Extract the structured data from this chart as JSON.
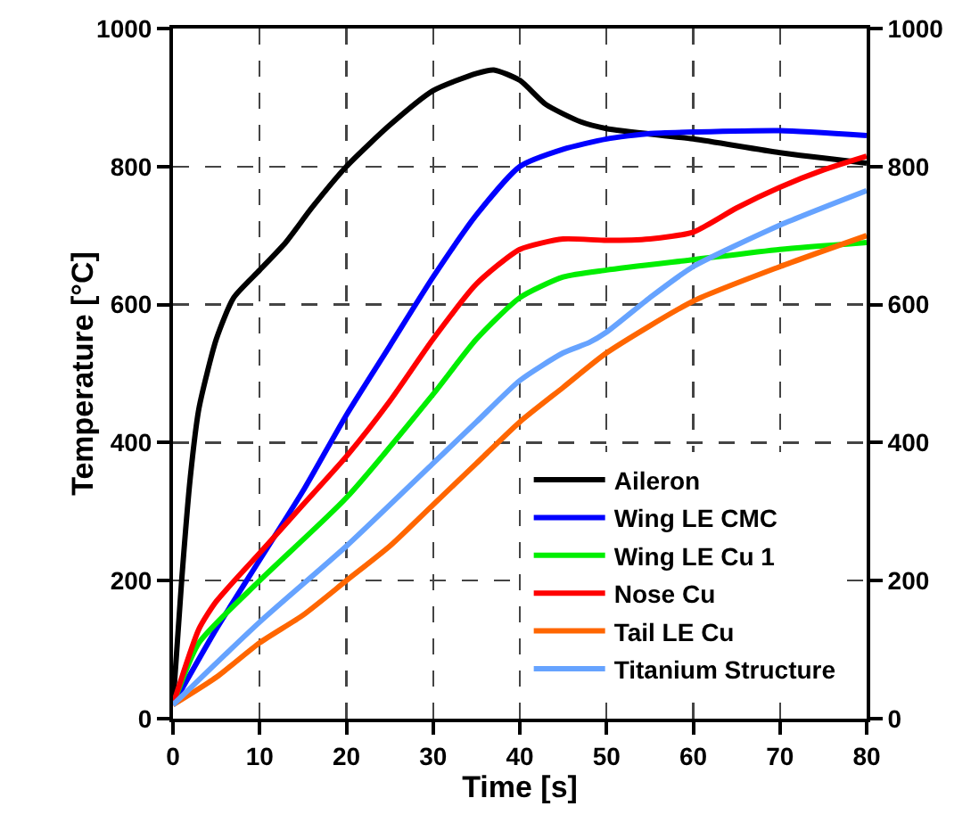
{
  "chart_data": {
    "type": "line",
    "xlabel": "Time [s]",
    "ylabel": "Temperature [°C]",
    "xlim": [
      0,
      80
    ],
    "xticks": [
      0,
      10,
      20,
      30,
      40,
      50,
      60,
      70,
      80
    ],
    "ylim": [
      0,
      1000
    ],
    "yticks": [
      0,
      200,
      400,
      600,
      800,
      1000
    ],
    "y2lim": [
      0,
      1000
    ],
    "y2ticks": [
      0,
      200,
      400,
      600,
      800,
      1000
    ],
    "grid": true,
    "legend": "bottom right",
    "line_style": "solid",
    "marker": "none",
    "series": [
      {
        "name": "Aileron",
        "color": "#000000",
        "x": [
          0,
          1,
          2,
          3,
          5,
          7,
          10,
          13,
          16,
          20,
          25,
          30,
          35,
          37,
          40,
          43,
          47,
          50,
          60,
          70,
          80
        ],
        "values": [
          20,
          200,
          350,
          450,
          550,
          610,
          650,
          690,
          740,
          800,
          860,
          910,
          935,
          940,
          925,
          890,
          865,
          855,
          840,
          820,
          805
        ]
      },
      {
        "name": "Wing LE CMC",
        "color": "#0000ff",
        "x": [
          0,
          5,
          10,
          15,
          20,
          25,
          30,
          35,
          40,
          45,
          50,
          55,
          60,
          70,
          80
        ],
        "values": [
          20,
          130,
          230,
          330,
          440,
          540,
          640,
          730,
          800,
          825,
          840,
          848,
          850,
          852,
          845
        ]
      },
      {
        "name": "Wing LE Cu 1",
        "color": "#00ee00",
        "x": [
          0,
          3,
          10,
          20,
          30,
          35,
          40,
          45,
          50,
          60,
          70,
          80
        ],
        "values": [
          20,
          110,
          200,
          320,
          470,
          550,
          610,
          640,
          650,
          665,
          680,
          690
        ]
      },
      {
        "name": "Nose Cu",
        "color": "#ff0000",
        "x": [
          0,
          3,
          5,
          10,
          15,
          20,
          25,
          30,
          35,
          40,
          45,
          50,
          55,
          60,
          65,
          70,
          75,
          80
        ],
        "values": [
          20,
          130,
          170,
          240,
          310,
          380,
          460,
          550,
          630,
          680,
          695,
          693,
          695,
          705,
          740,
          770,
          795,
          815
        ]
      },
      {
        "name": "Tail LE Cu",
        "color": "#ff6600",
        "x": [
          0,
          5,
          10,
          15,
          20,
          25,
          30,
          35,
          40,
          45,
          50,
          60,
          70,
          80
        ],
        "values": [
          20,
          60,
          110,
          150,
          200,
          250,
          310,
          370,
          430,
          480,
          530,
          605,
          655,
          700
        ]
      },
      {
        "name": "Titanium Structure",
        "color": "#66a3ff",
        "x": [
          0,
          10,
          20,
          30,
          35,
          40,
          45,
          48,
          50,
          55,
          60,
          70,
          80
        ],
        "values": [
          20,
          140,
          250,
          370,
          430,
          490,
          530,
          545,
          560,
          610,
          655,
          715,
          765
        ]
      }
    ]
  }
}
